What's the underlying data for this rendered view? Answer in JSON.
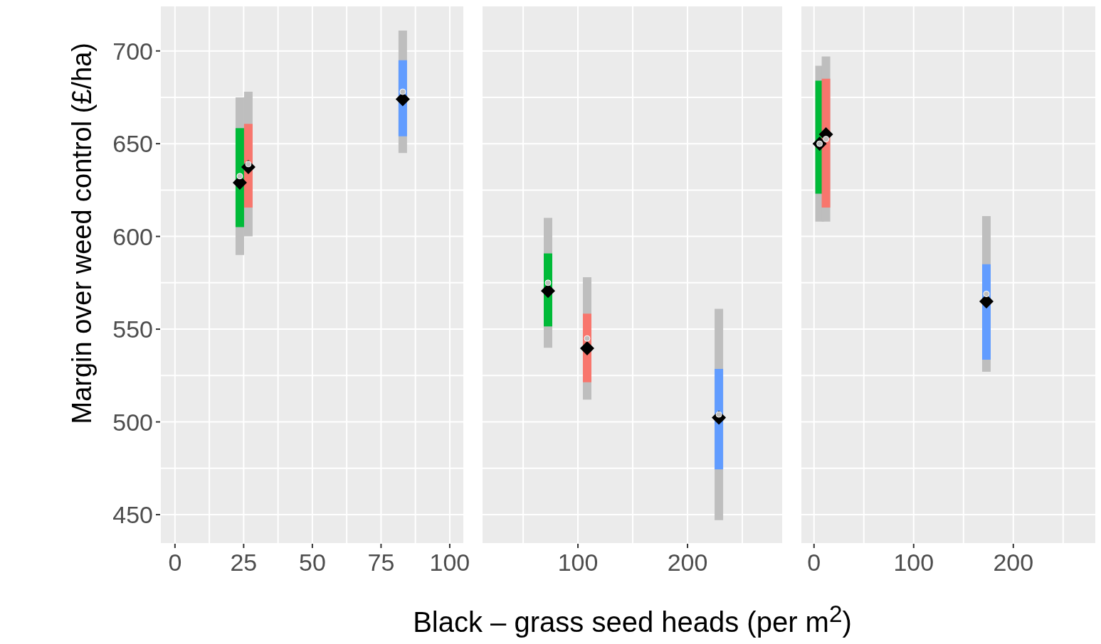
{
  "chart_data": [
    {
      "type": "scatter",
      "ylabel": "Margin over weed control (£/ha)",
      "xlim": [
        -5.4,
        105.2
      ],
      "xticks": [
        0,
        {
          "value": 12.5,
          "label": null
        },
        25,
        {
          "value": 37.5,
          "label": null
        },
        50,
        {
          "value": 62.5,
          "label": null
        },
        75,
        {
          "value": 87.5,
          "label": null
        },
        100
      ],
      "ylim": [
        434.3,
        724.4
      ],
      "yticks": [
        450,
        {
          "value": 475,
          "label": null
        },
        500,
        {
          "value": 525,
          "label": null
        },
        550,
        {
          "value": 575,
          "label": null
        },
        600,
        {
          "value": 625,
          "label": null
        },
        650,
        {
          "value": 675,
          "label": null
        },
        700
      ],
      "grid": true,
      "series": [
        {
          "color": "#bebebe",
          "marker": "circle",
          "x": [
            23.6,
            26.7,
            82.9
          ],
          "values": [
            632.5,
            639,
            678
          ],
          "errors": [
            [
              590,
              675
            ],
            [
              600,
              678
            ],
            [
              645,
              711
            ]
          ]
        },
        {
          "color": "#00ba38",
          "colors": [
            "#000000"
          ],
          "marker": "diamond",
          "x": [
            23.6
          ],
          "values": [
            629
          ],
          "errors": [
            [
              605,
              658.4
            ]
          ]
        },
        {
          "color": "#f8766d",
          "colors": [
            "#000000"
          ],
          "marker": "diamond",
          "x": [
            26.7
          ],
          "values": [
            637.4
          ],
          "errors": [
            [
              615.6,
              660.7
            ]
          ]
        },
        {
          "color": "#619cff",
          "colors": [
            "#000000"
          ],
          "marker": "diamond",
          "x": [
            82.9
          ],
          "values": [
            674
          ],
          "errors": [
            [
              654,
              695
            ]
          ]
        }
      ]
    },
    {
      "type": "scatter",
      "xlabel": "Black – grass seed heads (per m$^{2}$)",
      "xlim": [
        12.3,
        287
      ],
      "xticks": [
        {
          "value": 50,
          "label": null
        },
        100,
        {
          "value": 150,
          "label": null
        },
        200,
        {
          "value": 250,
          "label": null
        }
      ],
      "ylim": [
        434.3,
        724.4
      ],
      "yticks": [
        450,
        {
          "value": 475,
          "label": null
        },
        500,
        {
          "value": 525,
          "label": null
        },
        550,
        {
          "value": 575,
          "label": null
        },
        600,
        {
          "value": 625,
          "label": null
        },
        650,
        {
          "value": 675,
          "label": null
        },
        700
      ],
      "grid": true,
      "tick_labels": "x",
      "series": [
        {
          "color": "#bebebe",
          "marker": "circle",
          "x": [
            72.7,
            108.4,
            228.6
          ],
          "values": [
            575,
            545,
            504
          ],
          "errors": [
            [
              540,
              610
            ],
            [
              512,
              578
            ],
            [
              447,
              561
            ]
          ]
        },
        {
          "color": "#00ba38",
          "colors": [
            "#000000"
          ],
          "marker": "diamond",
          "x": [
            72.7
          ],
          "values": [
            570.6
          ],
          "errors": [
            [
              551.5,
              590.8
            ]
          ]
        },
        {
          "color": "#f8766d",
          "colors": [
            "#000000"
          ],
          "marker": "diamond",
          "x": [
            108.4
          ],
          "values": [
            539.7
          ],
          "errors": [
            [
              521.4,
              558.4
            ]
          ]
        },
        {
          "color": "#619cff",
          "colors": [
            "#000000"
          ],
          "marker": "diamond",
          "x": [
            228.6
          ],
          "values": [
            502.3
          ],
          "errors": [
            [
              474.4,
              528.6
            ]
          ]
        }
      ]
    },
    {
      "type": "scatter",
      "xlim": [
        -13.4,
        283
      ],
      "xticks": [
        0,
        {
          "value": 50,
          "label": null
        },
        100,
        {
          "value": 150,
          "label": null
        },
        200,
        {
          "value": 250,
          "label": null
        }
      ],
      "ylim": [
        434.3,
        724.4
      ],
      "yticks": [
        450,
        {
          "value": 475,
          "label": null
        },
        500,
        {
          "value": 525,
          "label": null
        },
        550,
        {
          "value": 575,
          "label": null
        },
        600,
        {
          "value": 625,
          "label": null
        },
        650,
        {
          "value": 675,
          "label": null
        },
        700
      ],
      "grid": true,
      "tick_labels": "x",
      "series": [
        {
          "color": "#bebebe",
          "marker": "circle",
          "x": [
            5.6,
            12,
            173
          ],
          "values": [
            650,
            652.5,
            569
          ],
          "errors": [
            [
              608,
              692
            ],
            [
              608,
              697
            ],
            [
              527,
              611
            ]
          ]
        },
        {
          "color": "#00ba38",
          "colors": [
            "#000000"
          ],
          "marker": "diamond",
          "x": [
            5.6
          ],
          "values": [
            650
          ],
          "errors": [
            [
              623,
              684
            ]
          ]
        },
        {
          "color": "#f8766d",
          "colors": [
            "#000000"
          ],
          "marker": "diamond",
          "x": [
            12
          ],
          "values": [
            655
          ],
          "errors": [
            [
              615.6,
              685
            ]
          ]
        },
        {
          "color": "#619cff",
          "colors": [
            "#000000"
          ],
          "marker": "diamond",
          "x": [
            173
          ],
          "values": [
            565
          ],
          "errors": [
            [
              533.6,
              585
            ]
          ]
        }
      ]
    }
  ]
}
